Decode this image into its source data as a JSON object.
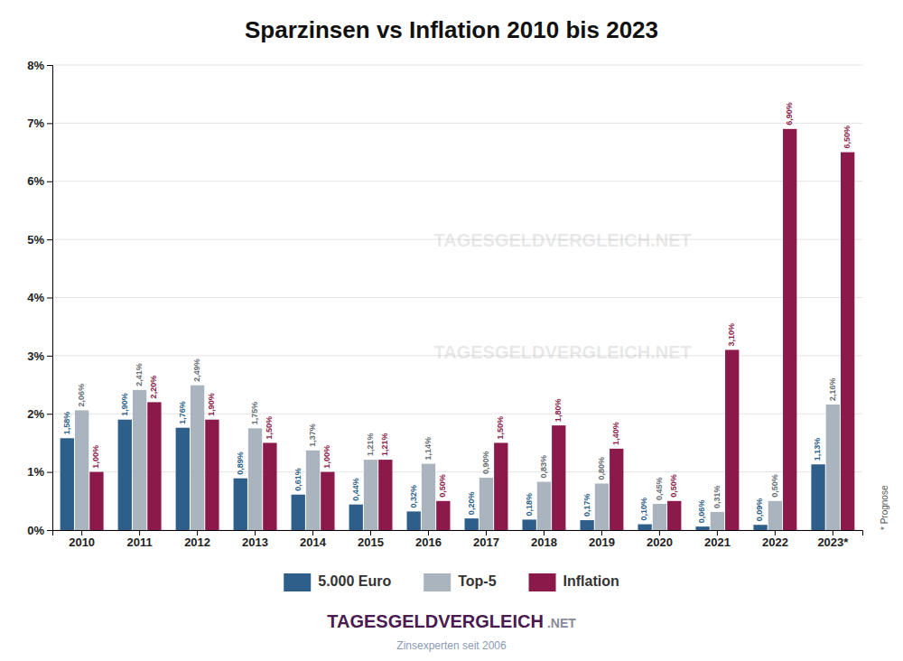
{
  "chart_data": {
    "type": "bar",
    "title": "Sparzinsen vs Inflation 2010 bis 2023",
    "categories": [
      "2010",
      "2011",
      "2012",
      "2013",
      "2014",
      "2015",
      "2016",
      "2017",
      "2018",
      "2019",
      "2020",
      "2021",
      "2022",
      "2023*"
    ],
    "series": [
      {
        "name": "5.000 Euro",
        "color": "#2d5f8a",
        "values": [
          1.58,
          1.9,
          1.76,
          0.89,
          0.61,
          0.44,
          0.32,
          0.2,
          0.18,
          0.17,
          0.1,
          0.06,
          0.09,
          1.13
        ],
        "value_labels": [
          "1,58%",
          "1,90%",
          "1,76%",
          "0,89%",
          "0,61%",
          "0,44%",
          "0,32%",
          "0,20%",
          "0,18%",
          "0,17%",
          "0,10%",
          "0,06%",
          "0,09%",
          "1,13%"
        ]
      },
      {
        "name": "Top-5",
        "color": "#aab4be",
        "values": [
          2.06,
          2.41,
          2.49,
          1.75,
          1.37,
          1.21,
          1.14,
          0.9,
          0.83,
          0.8,
          0.45,
          0.31,
          0.5,
          2.16
        ],
        "value_labels": [
          "2,06%",
          "2,41%",
          "2,49%",
          "1,75%",
          "1,37%",
          "1,21%",
          "1,14%",
          "0,90%",
          "0,83%",
          "0,80%",
          "0,45%",
          "0,31%",
          "0,50%",
          "2,16%"
        ]
      },
      {
        "name": "Inflation",
        "color": "#8b1a4a",
        "values": [
          1.0,
          2.2,
          1.9,
          1.5,
          1.0,
          1.21,
          0.5,
          1.5,
          1.8,
          1.4,
          0.5,
          3.1,
          6.9,
          6.5
        ],
        "value_labels": [
          "1,00%",
          "2,20%",
          "1,90%",
          "1,50%",
          "1,00%",
          "1,21%",
          "0,50%",
          "1,50%",
          "1,80%",
          "1,40%",
          "0,50%",
          "3,10%",
          "6,90%",
          "6,50%"
        ]
      }
    ],
    "ylim": [
      0,
      8
    ],
    "yticks": [
      {
        "value": 0,
        "label": "0%"
      },
      {
        "value": 1,
        "label": "1%"
      },
      {
        "value": 2,
        "label": "2%"
      },
      {
        "value": 3,
        "label": "3%"
      },
      {
        "value": 4,
        "label": "4%"
      },
      {
        "value": 5,
        "label": "5%"
      },
      {
        "value": 6,
        "label": "6%"
      },
      {
        "value": 7,
        "label": "7%"
      },
      {
        "value": 8,
        "label": "8%"
      }
    ],
    "grid": true,
    "legend": "bottom",
    "data_labels": true,
    "annotations": [
      "* Prognose",
      "TAGESGELDVERGLEICH.NET",
      "TAGESGELDVERGLEICH.NET",
      "TAGESGELDVERGLEICH",
      ".NET",
      "Zinsexperten seit 2006"
    ]
  }
}
